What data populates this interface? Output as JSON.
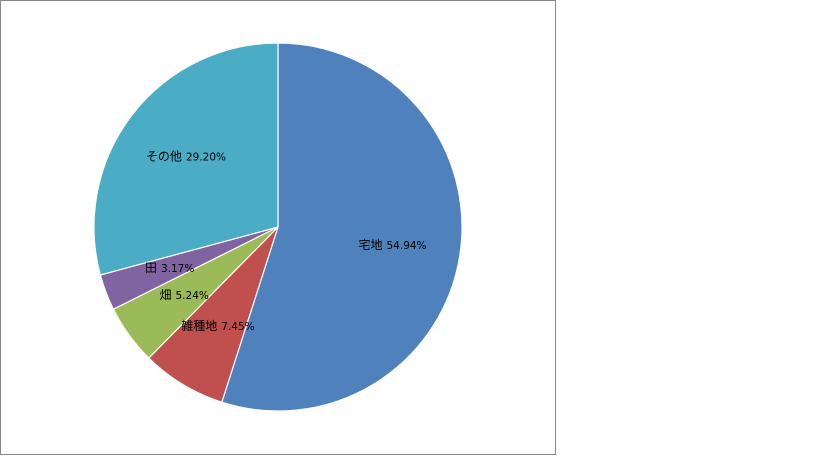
{
  "chart_data": {
    "type": "pie",
    "title": "",
    "start_angle_deg": 0,
    "direction": "clockwise",
    "slices": [
      {
        "label": "宅地",
        "value": 54.94,
        "value_label": "54.94%",
        "color": "#4F81BD"
      },
      {
        "label": "雑種地",
        "value": 7.45,
        "value_label": "7.45%",
        "color": "#C0504D"
      },
      {
        "label": "畑",
        "value": 5.24,
        "value_label": "5.24%",
        "color": "#9BBB59"
      },
      {
        "label": "田",
        "value": 3.17,
        "value_label": "3.17%",
        "color": "#8064A2"
      },
      {
        "label": "その他",
        "value": 29.2,
        "value_label": "29.20%",
        "color": "#4BACC6"
      }
    ],
    "legend": "none"
  }
}
